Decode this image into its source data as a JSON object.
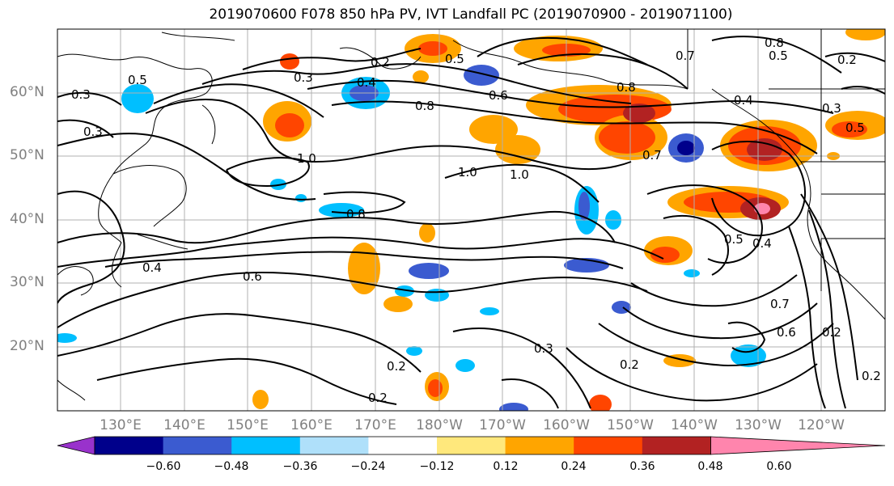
{
  "title": "2019070600 F078 850 hPa PV, IVT Landfall PC (2019070900 - 2019071100)",
  "lat_labels": [
    "60°N",
    "50°N",
    "40°N",
    "30°N",
    "20°N"
  ],
  "lon_labels": [
    "130°E",
    "140°E",
    "150°E",
    "160°E",
    "170°E",
    "180°W",
    "170°W",
    "160°W",
    "150°W",
    "140°W",
    "130°W",
    "120°W"
  ],
  "colorbar": {
    "ticks": [
      "−0.60",
      "−0.48",
      "−0.36",
      "−0.24",
      "−0.12",
      "0.12",
      "0.24",
      "0.36",
      "0.48",
      "0.60"
    ],
    "colors": [
      "#9932cc",
      "#00008b",
      "#3b5bd0",
      "#00bfff",
      "#afe0fa",
      "#ffffff",
      "#ffe87c",
      "#ffa500",
      "#ff4500",
      "#b22222",
      "#ff85ad"
    ]
  },
  "contour_labels": [
    "0.2",
    "0.3",
    "0.4",
    "0.5",
    "0.6",
    "0.7",
    "0.8",
    "1.0",
    "0.5",
    "0.3",
    "0.4",
    "0.8",
    "1.0",
    "1.0",
    "0.8",
    "0.4",
    "0.3",
    "0.2",
    "0.2",
    "0.6",
    "0.7",
    "0.5",
    "0.4",
    "0.3",
    "0.5",
    "0.2",
    "0.2",
    "0.7",
    "0.6",
    "0.2",
    "0.2",
    "0.5",
    "0.3",
    "0.8"
  ]
}
